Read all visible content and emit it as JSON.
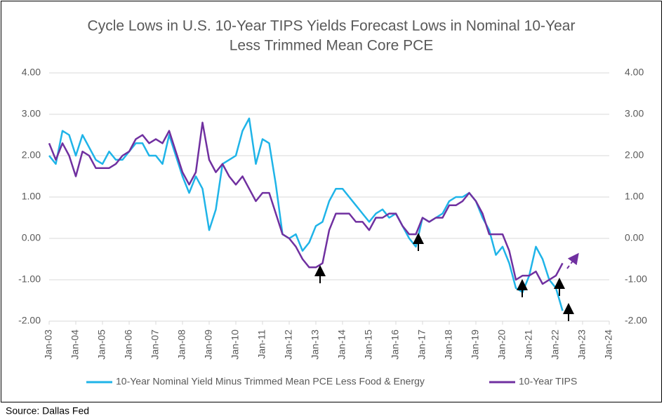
{
  "chart_data": {
    "type": "line",
    "title": [
      "Cycle Lows in U.S. 10-Year TIPS Yields Forecast Lows in Nominal 10-Year",
      "Less Trimmed Mean Core PCE"
    ],
    "source": "Source: Dallas Fed",
    "x": [
      2003,
      2003.25,
      2003.5,
      2003.75,
      2004,
      2004.25,
      2004.5,
      2004.75,
      2005,
      2005.25,
      2005.5,
      2005.75,
      2006,
      2006.25,
      2006.5,
      2006.75,
      2007,
      2007.25,
      2007.5,
      2007.75,
      2008,
      2008.25,
      2008.5,
      2008.75,
      2009,
      2009.25,
      2009.5,
      2009.75,
      2010,
      2010.25,
      2010.5,
      2010.75,
      2011,
      2011.25,
      2011.5,
      2011.75,
      2012,
      2012.25,
      2012.5,
      2012.75,
      2013,
      2013.25,
      2013.5,
      2013.75,
      2014,
      2014.25,
      2014.5,
      2014.75,
      2015,
      2015.25,
      2015.5,
      2015.75,
      2016,
      2016.25,
      2016.5,
      2016.75,
      2017,
      2017.25,
      2017.5,
      2017.75,
      2018,
      2018.25,
      2018.5,
      2018.75,
      2019,
      2019.25,
      2019.5,
      2019.75,
      2020,
      2020.25,
      2020.5,
      2020.75,
      2021,
      2021.25,
      2021.5,
      2021.75,
      2022,
      2022.25
    ],
    "series": [
      {
        "name": "10-Year Nominal Yield Minus Trimmed Mean PCE Less Food & Energy",
        "color": "#1fb4e8",
        "values": [
          2.0,
          1.8,
          2.6,
          2.5,
          2.0,
          2.5,
          2.2,
          1.9,
          1.8,
          2.1,
          1.9,
          1.9,
          2.1,
          2.3,
          2.3,
          2.0,
          2.0,
          1.8,
          2.5,
          2.0,
          1.5,
          1.1,
          1.5,
          1.2,
          0.2,
          0.7,
          1.8,
          1.9,
          2.0,
          2.6,
          2.9,
          1.8,
          2.4,
          2.3,
          1.3,
          0.1,
          0.0,
          0.1,
          -0.3,
          -0.1,
          0.3,
          0.4,
          0.9,
          1.2,
          1.2,
          1.0,
          0.8,
          0.6,
          0.4,
          0.6,
          0.7,
          0.5,
          0.6,
          0.3,
          0.0,
          -0.2,
          0.5,
          0.4,
          0.5,
          0.6,
          0.9,
          1.0,
          1.0,
          1.1,
          0.9,
          0.5,
          0.2,
          -0.4,
          -0.2,
          -0.6,
          -1.2,
          -1.3,
          -0.9,
          -0.2,
          -0.5,
          -1.0,
          -1.2,
          -1.75
        ]
      },
      {
        "name": "10-Year TIPS",
        "color": "#7030a0",
        "values": [
          2.3,
          1.9,
          2.3,
          2.0,
          1.5,
          2.1,
          2.0,
          1.7,
          1.7,
          1.7,
          1.8,
          2.0,
          2.1,
          2.4,
          2.5,
          2.3,
          2.4,
          2.3,
          2.6,
          2.1,
          1.6,
          1.3,
          1.6,
          2.8,
          1.9,
          1.6,
          1.8,
          1.5,
          1.3,
          1.5,
          1.2,
          0.9,
          1.1,
          1.1,
          0.6,
          0.1,
          0.0,
          -0.2,
          -0.5,
          -0.7,
          -0.7,
          -0.6,
          0.2,
          0.6,
          0.6,
          0.6,
          0.4,
          0.4,
          0.2,
          0.5,
          0.5,
          0.6,
          0.6,
          0.3,
          0.1,
          0.1,
          0.5,
          0.4,
          0.5,
          0.5,
          0.8,
          0.8,
          0.9,
          1.1,
          0.9,
          0.6,
          0.1,
          0.1,
          0.1,
          -0.3,
          -1.0,
          -0.9,
          -0.9,
          -0.8,
          -1.1,
          -1.0,
          -0.9,
          -0.6
        ]
      }
    ],
    "xlim": [
      2003,
      2024
    ],
    "xticks": [
      {
        "value": 2003,
        "label": "Jan-03"
      },
      {
        "value": 2004,
        "label": "Jan-04"
      },
      {
        "value": 2005,
        "label": "Jan-05"
      },
      {
        "value": 2006,
        "label": "Jan-06"
      },
      {
        "value": 2007,
        "label": "Jan-07"
      },
      {
        "value": 2008,
        "label": "Jan-08"
      },
      {
        "value": 2009,
        "label": "Jan-09"
      },
      {
        "value": 2010,
        "label": "Jan-10"
      },
      {
        "value": 2011,
        "label": "Jan-11"
      },
      {
        "value": 2012,
        "label": "Jan-12"
      },
      {
        "value": 2013,
        "label": "Jan-13"
      },
      {
        "value": 2014,
        "label": "Jan-14"
      },
      {
        "value": 2015,
        "label": "Jan-15"
      },
      {
        "value": 2016,
        "label": "Jan-16"
      },
      {
        "value": 2017,
        "label": "Jan-17"
      },
      {
        "value": 2018,
        "label": "Jan-18"
      },
      {
        "value": 2019,
        "label": "Jan-19"
      },
      {
        "value": 2020,
        "label": "Jan-20"
      },
      {
        "value": 2021,
        "label": "Jan-21"
      },
      {
        "value": 2022,
        "label": "Jan-22"
      },
      {
        "value": 2023,
        "label": "Jan-23"
      },
      {
        "value": 2024,
        "label": "Jan-24"
      }
    ],
    "ylim": [
      -2,
      4
    ],
    "yticks": [
      {
        "value": -2,
        "label": "-2.00"
      },
      {
        "value": -1,
        "label": "-1.00"
      },
      {
        "value": 0,
        "label": "0.00"
      },
      {
        "value": 1,
        "label": "1.00"
      },
      {
        "value": 2,
        "label": "2.00"
      },
      {
        "value": 3,
        "label": "3.00"
      },
      {
        "value": 4,
        "label": "4.00"
      }
    ],
    "y2lim": [
      -2,
      4
    ],
    "y2ticks": [
      {
        "value": -2,
        "label": "-2.00"
      },
      {
        "value": -1,
        "label": "-1.00"
      },
      {
        "value": 0,
        "label": "0.00"
      },
      {
        "value": 1,
        "label": "1.00"
      },
      {
        "value": 2,
        "label": "2.00"
      },
      {
        "value": 3,
        "label": "3.00"
      },
      {
        "value": 4,
        "label": "4.00"
      }
    ],
    "grid": true,
    "legend": "bottom"
  }
}
